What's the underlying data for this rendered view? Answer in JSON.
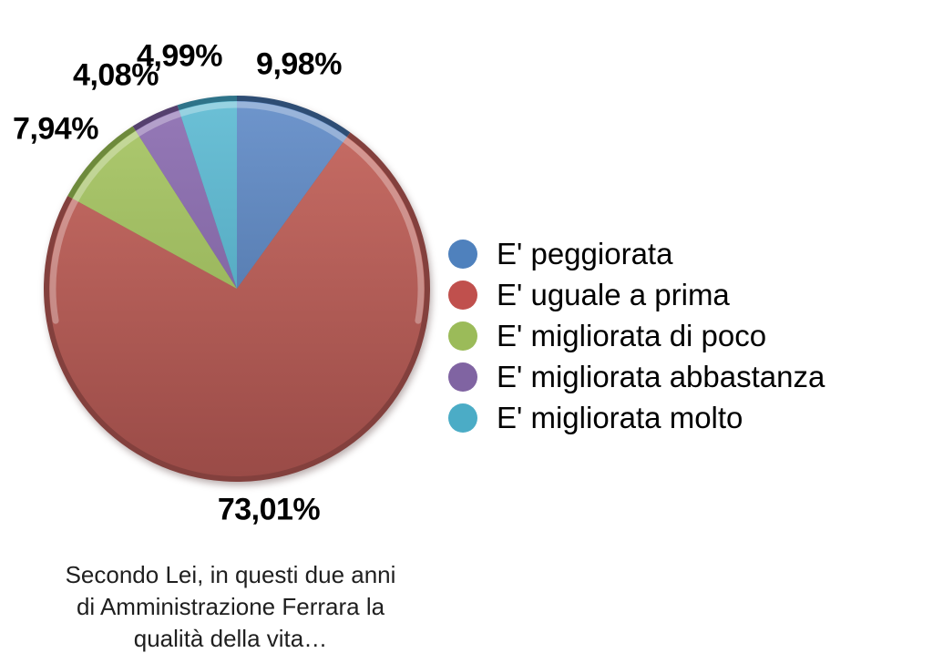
{
  "chart_data": {
    "type": "pie",
    "title": "",
    "direction": "clockwise",
    "start_angle_deg": 0,
    "legend_position": "right",
    "background_color": "#ffffff",
    "caption_lines": [
      "Secondo Lei, in questi due anni",
      "di Amministrazione Ferrara la",
      "qualità della vita…"
    ],
    "slices": [
      {
        "label": "E' peggiorata",
        "value": 9.98,
        "display": "9,98%",
        "color": "#4F81BD",
        "light": "#6E95CC",
        "dark": "#44699B",
        "rim": "#2E4D74"
      },
      {
        "label": "E' uguale a prima",
        "value": 73.01,
        "display": "73,01%",
        "color": "#C0504D",
        "light": "#C96E66",
        "dark": "#9A4B47",
        "rim": "#83403D"
      },
      {
        "label": "E' migliorata di poco",
        "value": 7.94,
        "display": "7,94%",
        "color": "#9BBB59",
        "light": "#AECA70",
        "dark": "#89A64C",
        "rim": "#6E8A3C"
      },
      {
        "label": "E' migliorata abbastanza",
        "value": 4.08,
        "display": "4,08%",
        "color": "#8064A2",
        "light": "#9579B7",
        "dark": "#715692",
        "rim": "#55406E"
      },
      {
        "label": "E' migliorata molto",
        "value": 4.99,
        "display": "4,99%",
        "color": "#4BACC6",
        "light": "#6BC0D6",
        "dark": "#4398B1",
        "rim": "#2E7389"
      }
    ]
  }
}
